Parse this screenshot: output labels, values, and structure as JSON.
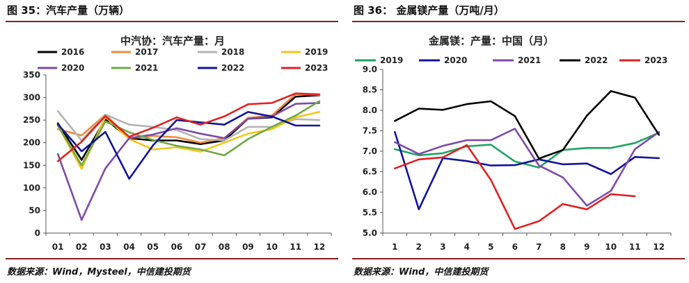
{
  "left": {
    "figure_title": "图 35：汽车产量（万辆）",
    "source": "数据来源：Wind，Mysteel，中信建投期货"
  },
  "right": {
    "figure_title": "图 36：  金属镁产量（万吨/月）",
    "source": "数据来源：Wind，中信建投期货"
  },
  "chart_data": [
    {
      "type": "line",
      "title": "中汽协：汽车产量：月",
      "categories": [
        "01",
        "02",
        "03",
        "04",
        "05",
        "06",
        "07",
        "08",
        "09",
        "10",
        "11",
        "12"
      ],
      "ylim": [
        0,
        350
      ],
      "yticks": [
        0,
        50,
        100,
        150,
        200,
        250,
        300,
        350
      ],
      "grid": false,
      "legend_position": "top",
      "series": [
        {
          "name": "2016",
          "color": "#000000",
          "values": [
            243,
            162,
            252,
            210,
            205,
            205,
            197,
            205,
            253,
            256,
            302,
            305
          ]
        },
        {
          "name": "2017",
          "color": "#f08a3c",
          "values": [
            230,
            216,
            262,
            210,
            215,
            212,
            200,
            210,
            255,
            260,
            308,
            306
          ]
        },
        {
          "name": "2018",
          "color": "#b3b3b3",
          "values": [
            270,
            205,
            262,
            240,
            235,
            228,
            208,
            205,
            235,
            235,
            252,
            250
          ]
        },
        {
          "name": "2019",
          "color": "#f5c518",
          "values": [
            238,
            142,
            257,
            208,
            185,
            190,
            180,
            200,
            220,
            230,
            256,
            268
          ]
        },
        {
          "name": "2020",
          "color": "#7d4aa8",
          "values": [
            175,
            29,
            143,
            210,
            218,
            232,
            220,
            210,
            253,
            258,
            286,
            288
          ]
        },
        {
          "name": "2021",
          "color": "#70a845",
          "values": [
            238,
            150,
            247,
            223,
            206,
            193,
            185,
            172,
            208,
            235,
            260,
            292
          ]
        },
        {
          "name": "2022",
          "color": "#10139c",
          "values": [
            241,
            181,
            224,
            120,
            194,
            250,
            245,
            240,
            268,
            258,
            238,
            238
          ]
        },
        {
          "name": "2023",
          "color": "#e0201f",
          "values": [
            159,
            202,
            259,
            213,
            233,
            256,
            240,
            258,
            285,
            288,
            309,
            307
          ]
        }
      ]
    },
    {
      "type": "line",
      "title": "金属镁：产量：中国（月）",
      "categories": [
        "1",
        "2",
        "3",
        "4",
        "5",
        "6",
        "7",
        "8",
        "9",
        "10",
        "11",
        "12"
      ],
      "ylim": [
        5.0,
        9.0
      ],
      "yticks": [
        "5.0",
        "5.5",
        "6.0",
        "6.5",
        "7.0",
        "7.5",
        "8.0",
        "8.5",
        "9.0"
      ],
      "grid": false,
      "legend_position": "top",
      "series": [
        {
          "name": "2019",
          "color": "#1fa463",
          "values": [
            7.05,
            6.9,
            6.95,
            7.12,
            7.16,
            6.75,
            6.6,
            7.03,
            7.08,
            7.08,
            7.2,
            7.45
          ]
        },
        {
          "name": "2020",
          "color": "#10139c",
          "values": [
            7.47,
            5.58,
            6.83,
            6.76,
            6.65,
            6.66,
            6.8,
            6.68,
            6.7,
            6.44,
            6.86,
            6.83
          ]
        },
        {
          "name": "2021",
          "color": "#7d4aa8",
          "values": [
            7.22,
            6.93,
            7.13,
            7.27,
            7.27,
            7.55,
            6.65,
            6.36,
            5.67,
            6.03,
            7.05,
            7.47
          ]
        },
        {
          "name": "2022",
          "color": "#000000",
          "values": [
            7.74,
            8.04,
            8.01,
            8.15,
            8.22,
            7.86,
            6.82,
            7.03,
            7.87,
            8.47,
            8.31,
            7.4
          ]
        },
        {
          "name": "2023",
          "color": "#e0201f",
          "values": [
            6.58,
            6.8,
            6.85,
            7.15,
            6.3,
            5.1,
            5.29,
            5.71,
            5.58,
            5.95,
            5.9,
            null
          ]
        }
      ]
    }
  ]
}
